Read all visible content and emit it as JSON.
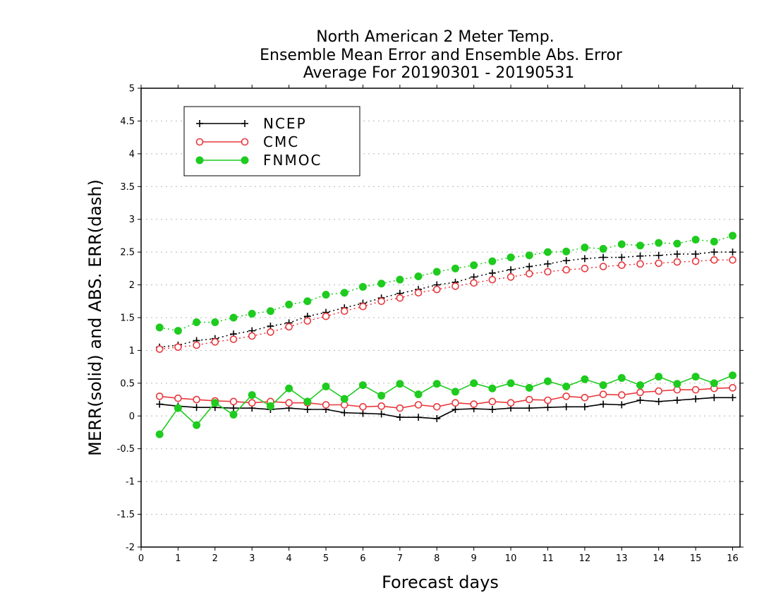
{
  "chart_data": {
    "type": "line",
    "title": [
      "North American 2 Meter Temp.",
      "Ensemble Mean Error and Ensemble Abs. Error",
      "Average For 20190301 - 20190531"
    ],
    "xlabel": "Forecast days",
    "ylabel": "MERR(solid) and ABS. ERR(dash)",
    "xlim": [
      0,
      16.2
    ],
    "ylim": [
      -2,
      5
    ],
    "x_ticks": [
      0,
      1,
      2,
      3,
      4,
      5,
      6,
      7,
      8,
      9,
      10,
      11,
      12,
      13,
      14,
      15,
      16
    ],
    "y_ticks": [
      -2,
      -1.5,
      -1,
      -0.5,
      0,
      0.5,
      1,
      1.5,
      2,
      2.5,
      3,
      3.5,
      4,
      4.5,
      5
    ],
    "y_tick_labels": [
      "-2",
      "-1.5",
      "-1",
      "-0.5",
      "0",
      "0.5",
      "1",
      "1.5",
      "2",
      "2.5",
      "3",
      "3.5",
      "4",
      "4.5",
      "5"
    ],
    "grid": "horizontal dotted",
    "legend_position": "top-left",
    "x": [
      0.5,
      1,
      1.5,
      2,
      2.5,
      3,
      3.5,
      4,
      4.5,
      5,
      5.5,
      6,
      6.5,
      7,
      7.5,
      8,
      8.5,
      9,
      9.5,
      10,
      10.5,
      11,
      11.5,
      12,
      12.5,
      13,
      13.5,
      14,
      14.5,
      15,
      15.5,
      16
    ],
    "series": [
      {
        "name": "NCEP",
        "color": "#000000",
        "marker": "plus",
        "mean_error": [
          0.18,
          0.15,
          0.13,
          0.13,
          0.12,
          0.12,
          0.1,
          0.12,
          0.1,
          0.1,
          0.05,
          0.04,
          0.03,
          -0.02,
          -0.02,
          -0.04,
          0.1,
          0.11,
          0.1,
          0.12,
          0.12,
          0.13,
          0.14,
          0.14,
          0.18,
          0.17,
          0.24,
          0.22,
          0.24,
          0.26,
          0.28,
          0.28
        ],
        "abs_error": [
          1.05,
          1.08,
          1.15,
          1.18,
          1.25,
          1.3,
          1.37,
          1.42,
          1.52,
          1.58,
          1.65,
          1.72,
          1.8,
          1.87,
          1.93,
          2.0,
          2.04,
          2.12,
          2.18,
          2.23,
          2.28,
          2.32,
          2.37,
          2.4,
          2.42,
          2.42,
          2.44,
          2.45,
          2.47,
          2.47,
          2.5,
          2.5
        ]
      },
      {
        "name": "CMC",
        "color": "#e8383d",
        "marker": "open-circle",
        "mean_error": [
          0.3,
          0.27,
          0.25,
          0.23,
          0.22,
          0.2,
          0.22,
          0.2,
          0.2,
          0.17,
          0.17,
          0.14,
          0.15,
          0.12,
          0.17,
          0.14,
          0.2,
          0.18,
          0.22,
          0.2,
          0.25,
          0.24,
          0.3,
          0.28,
          0.33,
          0.32,
          0.36,
          0.38,
          0.4,
          0.4,
          0.42,
          0.43
        ],
        "abs_error": [
          1.02,
          1.05,
          1.08,
          1.13,
          1.17,
          1.22,
          1.28,
          1.36,
          1.45,
          1.52,
          1.6,
          1.67,
          1.75,
          1.8,
          1.88,
          1.93,
          1.98,
          2.03,
          2.08,
          2.12,
          2.17,
          2.2,
          2.23,
          2.25,
          2.28,
          2.3,
          2.32,
          2.33,
          2.35,
          2.36,
          2.38,
          2.38
        ]
      },
      {
        "name": "FNMOC",
        "color": "#1ecb1e",
        "marker": "filled-circle",
        "mean_error": [
          -0.28,
          0.12,
          -0.14,
          0.2,
          0.02,
          0.32,
          0.15,
          0.42,
          0.22,
          0.45,
          0.26,
          0.47,
          0.31,
          0.49,
          0.33,
          0.49,
          0.37,
          0.5,
          0.42,
          0.5,
          0.43,
          0.53,
          0.45,
          0.56,
          0.47,
          0.58,
          0.47,
          0.6,
          0.49,
          0.6,
          0.5,
          0.62
        ],
        "abs_error": [
          1.35,
          1.3,
          1.43,
          1.43,
          1.5,
          1.56,
          1.6,
          1.7,
          1.75,
          1.85,
          1.88,
          1.97,
          2.02,
          2.08,
          2.13,
          2.2,
          2.25,
          2.3,
          2.36,
          2.42,
          2.45,
          2.5,
          2.51,
          2.57,
          2.55,
          2.62,
          2.6,
          2.64,
          2.63,
          2.69,
          2.66,
          2.75
        ]
      }
    ]
  }
}
